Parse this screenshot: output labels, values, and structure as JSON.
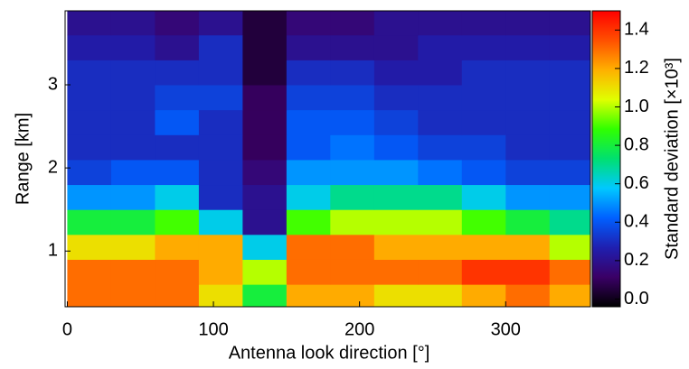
{
  "chart_data": {
    "type": "heatmap",
    "xlabel": "Antenna look direction [°]",
    "ylabel": "Range [km]",
    "colorbar_label": "Standard deviation [×10³]",
    "x_edges": [
      0,
      30,
      60,
      90,
      120,
      150,
      180,
      210,
      240,
      270,
      300,
      330,
      360
    ],
    "y_edges": [
      0.33,
      0.6,
      0.9,
      1.2,
      1.5,
      1.8,
      2.1,
      2.4,
      2.7,
      3.0,
      3.3,
      3.6,
      3.89
    ],
    "values": [
      [
        1.3,
        1.3,
        1.3,
        1.1,
        0.8,
        1.2,
        1.2,
        1.1,
        1.1,
        1.2,
        1.3,
        1.2
      ],
      [
        1.3,
        1.3,
        1.3,
        1.2,
        1.0,
        1.3,
        1.3,
        1.3,
        1.3,
        1.4,
        1.4,
        1.3
      ],
      [
        1.1,
        1.1,
        1.2,
        1.2,
        0.6,
        1.3,
        1.3,
        1.2,
        1.2,
        1.2,
        1.2,
        1.0
      ],
      [
        0.8,
        0.8,
        0.9,
        0.6,
        0.2,
        0.9,
        1.0,
        1.0,
        1.0,
        0.9,
        0.8,
        0.7
      ],
      [
        0.5,
        0.5,
        0.6,
        0.3,
        0.2,
        0.6,
        0.7,
        0.7,
        0.7,
        0.6,
        0.5,
        0.5
      ],
      [
        0.35,
        0.4,
        0.4,
        0.3,
        0.15,
        0.5,
        0.5,
        0.5,
        0.45,
        0.4,
        0.35,
        0.35
      ],
      [
        0.3,
        0.3,
        0.3,
        0.3,
        0.1,
        0.4,
        0.45,
        0.4,
        0.35,
        0.35,
        0.3,
        0.3
      ],
      [
        0.3,
        0.3,
        0.4,
        0.3,
        0.1,
        0.4,
        0.4,
        0.35,
        0.3,
        0.3,
        0.3,
        0.3
      ],
      [
        0.3,
        0.3,
        0.35,
        0.35,
        0.1,
        0.35,
        0.35,
        0.3,
        0.3,
        0.3,
        0.3,
        0.3
      ],
      [
        0.3,
        0.3,
        0.3,
        0.3,
        0.05,
        0.3,
        0.3,
        0.25,
        0.25,
        0.3,
        0.3,
        0.3
      ],
      [
        0.25,
        0.25,
        0.2,
        0.3,
        0.05,
        0.2,
        0.2,
        0.2,
        0.25,
        0.25,
        0.25,
        0.25
      ],
      [
        0.2,
        0.2,
        0.15,
        0.2,
        0.05,
        0.15,
        0.15,
        0.2,
        0.2,
        0.2,
        0.2,
        0.2
      ]
    ],
    "xlim": [
      -1.5,
      358
    ],
    "ylim": [
      0.33,
      3.89
    ],
    "xticks": [
      0,
      100,
      200,
      300
    ],
    "yticks": [
      1,
      2,
      3
    ],
    "clim": [
      -0.04,
      1.5
    ],
    "colormap": [
      "#000000",
      "#3a0066",
      "#1f1fb0",
      "#0060ff",
      "#00c8ff",
      "#00e070",
      "#30ff00",
      "#e0ff00",
      "#ffb000",
      "#ff5000",
      "#ff0000"
    ],
    "cticks": [
      {
        "value": 0.0,
        "label": "0.0"
      },
      {
        "value": 0.2,
        "label": "0.2"
      },
      {
        "value": 0.4,
        "label": "0.4"
      },
      {
        "value": 0.6,
        "label": "0.6"
      },
      {
        "value": 0.8,
        "label": "0.8"
      },
      {
        "value": 1.0,
        "label": "1.0"
      },
      {
        "value": 1.2,
        "label": "1.2"
      },
      {
        "value": 1.4,
        "label": "1.4"
      }
    ]
  }
}
